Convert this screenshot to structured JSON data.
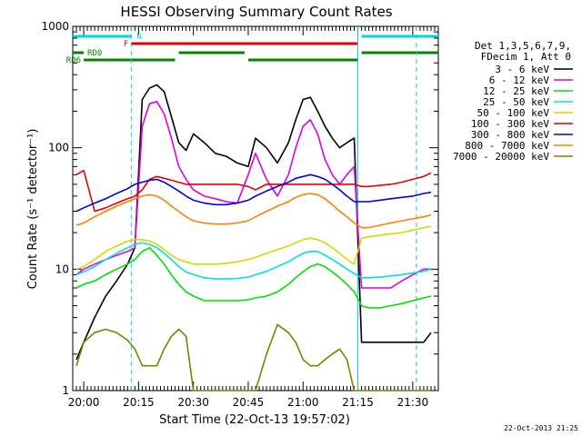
{
  "chart_data": {
    "type": "line",
    "title": "HESSI Observing Summary Count Rates",
    "xlabel": "Start Time (22-Oct-13 19:57:02)",
    "ylabel": "Count Rate (s⁻¹ detector⁻¹)",
    "y_scale": "log",
    "ylim": [
      1,
      1000
    ],
    "xlim": [
      "19:57",
      "21:37"
    ],
    "x_ticks": [
      "20:00",
      "20:15",
      "20:30",
      "20:45",
      "21:00",
      "21:15",
      "21:30"
    ],
    "y_ticks": [
      "1",
      "10",
      "100",
      "1000"
    ],
    "grid": false,
    "legend_position": "right",
    "legend_header": [
      "Det 1,3,5,6,7,9,",
      "FDecim 1, Att 0"
    ],
    "timestamp": "22-Oct-2013 21:25",
    "x": [
      "19:58",
      "20:00",
      "20:03",
      "20:06",
      "20:09",
      "20:12",
      "20:14",
      "20:16",
      "20:18",
      "20:20",
      "20:22",
      "20:24",
      "20:26",
      "20:28",
      "20:30",
      "20:33",
      "20:36",
      "20:39",
      "20:42",
      "20:45",
      "20:47",
      "20:50",
      "20:53",
      "20:56",
      "20:58",
      "21:00",
      "21:02",
      "21:04",
      "21:06",
      "21:08",
      "21:10",
      "21:12",
      "21:14",
      "21:16",
      "21:18",
      "21:21",
      "21:24",
      "21:27",
      "21:30",
      "21:33",
      "21:35"
    ],
    "series": [
      {
        "name": "3 - 6 keV",
        "color": "#000000",
        "values": [
          1.8,
          2.5,
          4,
          6,
          8,
          11,
          15,
          250,
          310,
          330,
          290,
          180,
          110,
          95,
          130,
          110,
          90,
          85,
          75,
          70,
          120,
          100,
          75,
          110,
          170,
          250,
          260,
          200,
          150,
          120,
          100,
          110,
          120,
          2.5,
          2.5,
          2.5,
          2.5,
          2.5,
          2.5,
          2.5,
          3
        ]
      },
      {
        "name": "6 - 12 keV",
        "color": "#e000e0",
        "values": [
          9,
          10,
          11,
          12,
          13,
          14,
          15,
          150,
          230,
          240,
          190,
          120,
          70,
          55,
          45,
          40,
          38,
          36,
          35,
          60,
          90,
          55,
          40,
          60,
          100,
          150,
          170,
          130,
          80,
          60,
          50,
          60,
          70,
          7,
          7,
          7,
          7,
          8,
          9,
          10,
          10
        ]
      },
      {
        "name": "12 - 25 keV",
        "color": "#00e000",
        "values": [
          7,
          7.5,
          8,
          9,
          10,
          11,
          12,
          14,
          15,
          13,
          11,
          9,
          7.5,
          6.5,
          6,
          5.5,
          5.5,
          5.5,
          5.5,
          5.6,
          5.8,
          6,
          6.5,
          7.5,
          8.5,
          9.5,
          10.5,
          11,
          10.5,
          9.5,
          8.5,
          7.5,
          6.5,
          5,
          4.8,
          4.8,
          5,
          5.2,
          5.5,
          5.8,
          6
        ]
      },
      {
        "name": "25 - 50 keV",
        "color": "#00e0e0",
        "values": [
          9,
          9.5,
          10.5,
          12,
          13.5,
          15,
          16,
          16.5,
          16,
          15,
          13.5,
          12,
          10.5,
          9.5,
          9,
          8.5,
          8.3,
          8.3,
          8.4,
          8.6,
          9,
          9.6,
          10.5,
          11.5,
          12.5,
          13.5,
          14,
          14,
          13,
          12,
          11,
          10,
          9.2,
          8.5,
          8.5,
          8.6,
          8.8,
          9,
          9.3,
          9.6,
          10
        ]
      },
      {
        "name": "50 - 100 keV",
        "color": "#d8d800",
        "values": [
          10,
          10.5,
          12,
          14,
          15.5,
          17,
          17.5,
          17.5,
          17,
          16,
          14.5,
          13,
          12,
          11.5,
          11,
          11,
          11,
          11.2,
          11.5,
          12,
          12.5,
          13.5,
          14.5,
          15.5,
          16.5,
          17.5,
          18,
          17.5,
          16.5,
          15,
          13.5,
          12,
          11,
          18,
          18.5,
          19,
          19.5,
          20,
          21,
          22,
          22.5
        ]
      },
      {
        "name": "100 - 300 keV",
        "color": "#e80000",
        "values": [
          60,
          65,
          30,
          32,
          35,
          38,
          40,
          45,
          55,
          58,
          56,
          54,
          52,
          50,
          50,
          50,
          50,
          50,
          50,
          48,
          45,
          50,
          50,
          50,
          50,
          50,
          50,
          50,
          50,
          50,
          50,
          50,
          50,
          48,
          48,
          49,
          50,
          52,
          55,
          58,
          62
        ]
      },
      {
        "name": "300 - 800 keV",
        "color": "#0000e0",
        "values": [
          30,
          32,
          35,
          38,
          42,
          46,
          50,
          52,
          54,
          55,
          52,
          48,
          44,
          40,
          37,
          35,
          34,
          34,
          35,
          37,
          40,
          44,
          48,
          52,
          56,
          58,
          60,
          58,
          55,
          50,
          45,
          40,
          36,
          36,
          36,
          37,
          38,
          39,
          40,
          42,
          43
        ]
      },
      {
        "name": "800 - 7000 keV",
        "color": "#ff8000",
        "values": [
          23,
          24,
          27,
          30,
          33,
          36,
          38,
          40,
          41,
          40,
          37,
          33,
          30,
          27,
          25,
          24,
          23.5,
          23.5,
          24,
          25,
          27,
          30,
          33,
          36,
          39,
          41,
          42,
          41,
          38,
          34,
          30,
          27,
          24,
          22,
          22,
          23,
          24,
          25,
          26,
          27,
          28
        ]
      },
      {
        "name": "7000 - 20000 keV",
        "color": "#808000",
        "values": [
          1.6,
          2.5,
          3,
          3.2,
          3,
          2.6,
          2.2,
          1.6,
          1.6,
          1.6,
          2.2,
          2.8,
          3.2,
          2.8,
          1,
          1,
          1,
          1,
          1,
          1,
          1,
          2,
          3.5,
          3,
          2.5,
          1.8,
          1.6,
          1.6,
          1.8,
          2,
          2.2,
          1.8,
          1,
          1,
          1,
          1,
          1,
          1,
          1,
          1,
          1
        ]
      }
    ],
    "bars": [
      {
        "label": "N",
        "color": "#00d8d8",
        "start": "19:57",
        "end": "20:13"
      },
      {
        "label": "",
        "color": "#00d8d8",
        "start": "21:16",
        "end": "21:37"
      },
      {
        "label": "F",
        "color": "#e80000",
        "start": "20:13",
        "end": "21:15"
      },
      {
        "label": "RD0",
        "color": "#008800",
        "start": "19:57",
        "end": "20:00"
      },
      {
        "label": "",
        "color": "#008800",
        "start": "20:26",
        "end": "20:44"
      },
      {
        "label": "",
        "color": "#008800",
        "start": "21:16",
        "end": "21:37"
      },
      {
        "label": "RD6",
        "color": "#008800",
        "start": "20:00",
        "end": "20:25"
      },
      {
        "label": "",
        "color": "#008800",
        "start": "20:45",
        "end": "21:15"
      }
    ],
    "markers": [
      "20:13",
      "21:15",
      "21:31"
    ]
  }
}
